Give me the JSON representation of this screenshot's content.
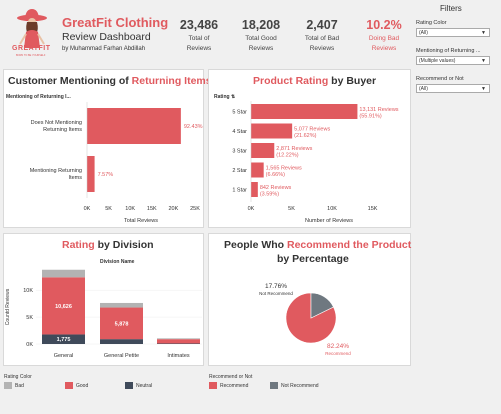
{
  "brand": {
    "logo_text": "GREATFIT",
    "logo_tagline": "BORN TO BE YOURSELF"
  },
  "header": {
    "title_line1": "GreatFit Clothing",
    "title_line2": "Review Dashboard",
    "author": "by Muhammad Farhan Abdillah"
  },
  "kpis": [
    {
      "value": "23,486",
      "label1": "Total of",
      "label2": "Reviews",
      "highlight": false
    },
    {
      "value": "18,208",
      "label1": "Total Good",
      "label2": "Reviews",
      "highlight": false
    },
    {
      "value": "2,407",
      "label1": "Total of Bad",
      "label2": "Reviews",
      "highlight": false
    },
    {
      "value": "10.2%",
      "label1": "Doing Bad",
      "label2": "Reviews",
      "highlight": true
    }
  ],
  "filters": {
    "title": "Filters",
    "items": [
      {
        "label": "Rating Color",
        "value": "(All)"
      },
      {
        "label": "Mentioning of Returning ...",
        "value": "(Multiple values)"
      },
      {
        "label": "Recommend or Not",
        "value": "(All)"
      }
    ]
  },
  "panel_returning": {
    "title_a": "Customer Mentioning of ",
    "title_b": "Returning Items",
    "header_label": "Mentioning of Returning I...",
    "xlabel": "Total Reviews"
  },
  "panel_rating": {
    "title_a": "Product Rating",
    "title_b": " by Buyer",
    "header_label": "Rating",
    "xlabel": "Number of Reviews"
  },
  "panel_division": {
    "title_a": "Rating",
    "title_b": " by Division",
    "header_label": "Division Name",
    "ylabel": "Countd Reviews"
  },
  "panel_recommend": {
    "title_a": "People Who ",
    "title_b": "Recommend the Product",
    "title_c": "by Percentage"
  },
  "legend_rating": {
    "title": "Rating Color",
    "items": [
      {
        "label": "Bad",
        "color": "#b3b3b3"
      },
      {
        "label": "Good",
        "color": "#e05a5f"
      },
      {
        "label": "Neutral",
        "color": "#3f4a5a"
      }
    ]
  },
  "legend_recommend": {
    "title": "Recommend or Not",
    "items": [
      {
        "label": "Recommend",
        "color": "#e05a5f"
      },
      {
        "label": "Not Recommend",
        "color": "#6f7880"
      }
    ]
  },
  "chart_data": [
    {
      "type": "bar",
      "orientation": "horizontal",
      "title": "Customer Mentioning of Returning Items",
      "categories": [
        "Does Not Mentioning Returning Items",
        "Mentioning Returning Items"
      ],
      "values": [
        21729,
        1757
      ],
      "data_labels": [
        "92.43%",
        "7.57%"
      ],
      "xlim": [
        0,
        25000
      ],
      "xticks": [
        "0K",
        "5K",
        "10K",
        "15K",
        "20K",
        "25K"
      ],
      "xlabel": "Total Reviews",
      "color": "#e05a5f"
    },
    {
      "type": "bar",
      "orientation": "horizontal",
      "title": "Product Rating by Buyer",
      "categories": [
        "5 Star",
        "4 Star",
        "3 Star",
        "2 Star",
        "1 Star"
      ],
      "values": [
        13131,
        5077,
        2871,
        1565,
        842
      ],
      "data_labels": [
        [
          "13,131 Reviews",
          "(55.91%)"
        ],
        [
          "5,077 Reviews",
          "(21.62%)"
        ],
        [
          "2,871 Reviews",
          "(12.22%)"
        ],
        [
          "1,565 Reviews",
          "(6.66%)"
        ],
        [
          "842 Reviews",
          "(3.59%)"
        ]
      ],
      "xlim": [
        0,
        19000
      ],
      "xticks": [
        "0K",
        "5K",
        "10K",
        "15K"
      ],
      "xlabel": "Number of Reviews",
      "color": "#e05a5f"
    },
    {
      "type": "bar",
      "stacked": true,
      "title": "Rating by Division",
      "categories": [
        "General",
        "General Petite",
        "Intimates"
      ],
      "series": [
        {
          "name": "Neutral",
          "values": [
            1775,
            900,
            100
          ],
          "color": "#3f4a5a"
        },
        {
          "name": "Good",
          "values": [
            10626,
            5878,
            800
          ],
          "color": "#e05a5f"
        },
        {
          "name": "Bad",
          "values": [
            1400,
            850,
            150
          ],
          "color": "#b3b3b3"
        }
      ],
      "data_labels": {
        "Good": [
          "10,626",
          "5,878",
          ""
        ],
        "Neutral": [
          "1,775",
          "",
          ""
        ]
      },
      "ylim": [
        0,
        14500
      ],
      "yticks": [
        "0K",
        "5K",
        "10K"
      ],
      "ylabel": "Countd Reviews"
    },
    {
      "type": "pie",
      "title": "People Who Recommend the Product by Percentage",
      "categories": [
        "Recommend",
        "Not Recommend"
      ],
      "values": [
        82.24,
        17.76
      ],
      "data_labels": [
        "82.24%",
        "17.76%"
      ],
      "colors": [
        "#e05a5f",
        "#6f7880"
      ]
    }
  ]
}
